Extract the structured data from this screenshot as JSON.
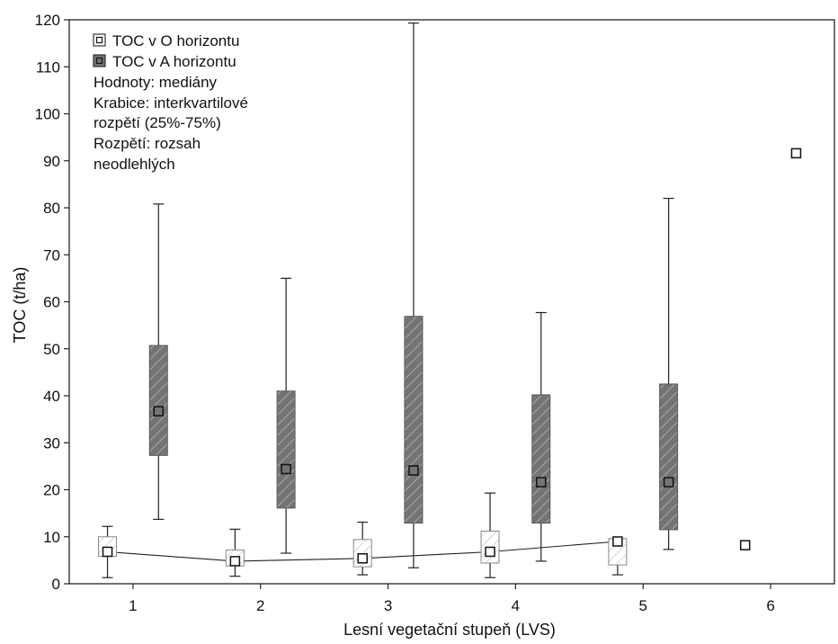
{
  "chart_data": {
    "type": "box",
    "title": "",
    "xlabel": "Lesní vegetační stupeň (LVS)",
    "ylabel": "TOC (t/ha)",
    "ylim": [
      0,
      120
    ],
    "y_ticks": [
      0,
      10,
      20,
      30,
      40,
      50,
      60,
      70,
      80,
      90,
      100,
      110,
      120
    ],
    "x_ticks": [
      1,
      2,
      3,
      4,
      5,
      6
    ],
    "grid": false,
    "legend_position": "top-left",
    "legend": {
      "series_o": "TOC v O horizontu",
      "series_a": "TOC v A horizontu",
      "notes": [
        "Hodnoty: mediány",
        "Krabice: interkvartilové",
        "rozpětí (25%-75%)",
        "Rozpětí: rozsah",
        "neodlehlých"
      ]
    },
    "series": [
      {
        "name": "TOC v O horizontu",
        "fill_color": "#ffffff",
        "hatch_color": "#bbbbbb",
        "connect_medians": true,
        "boxes": [
          {
            "x": 0.8,
            "whisker_low": 1.3,
            "q1": 5.8,
            "median": 6.8,
            "q3": 10.0,
            "whisker_high": 12.2
          },
          {
            "x": 1.8,
            "whisker_low": 1.6,
            "q1": 3.8,
            "median": 4.8,
            "q3": 7.2,
            "whisker_high": 11.6
          },
          {
            "x": 2.8,
            "whisker_low": 1.9,
            "q1": 3.6,
            "median": 5.4,
            "q3": 9.4,
            "whisker_high": 13.1
          },
          {
            "x": 3.8,
            "whisker_low": 1.3,
            "q1": 4.4,
            "median": 6.8,
            "q3": 11.2,
            "whisker_high": 19.3
          },
          {
            "x": 4.8,
            "whisker_low": 1.9,
            "q1": 4.0,
            "median": 9.0,
            "q3": 9.6,
            "whisker_high": 9.6
          },
          {
            "x": 5.8,
            "median": 8.2
          }
        ]
      },
      {
        "name": "TOC v A horizontu",
        "fill_color": "#747474",
        "hatch_color": "#a8a8a8",
        "connect_medians": false,
        "boxes": [
          {
            "x": 1.2,
            "whisker_low": 13.7,
            "q1": 27.3,
            "median": 36.7,
            "q3": 50.7,
            "whisker_high": 80.8
          },
          {
            "x": 2.2,
            "whisker_low": 6.5,
            "q1": 16.1,
            "median": 24.4,
            "q3": 41.0,
            "whisker_high": 65.0
          },
          {
            "x": 3.2,
            "whisker_low": 3.4,
            "q1": 12.9,
            "median": 24.1,
            "q3": 56.9,
            "whisker_high": 119.3
          },
          {
            "x": 4.2,
            "whisker_low": 4.8,
            "q1": 12.9,
            "median": 21.6,
            "q3": 40.2,
            "whisker_high": 57.7
          },
          {
            "x": 5.2,
            "whisker_low": 7.3,
            "q1": 11.5,
            "median": 21.6,
            "q3": 42.5,
            "whisker_high": 82.0
          },
          {
            "x": 6.2,
            "median": 91.6
          }
        ]
      }
    ]
  }
}
